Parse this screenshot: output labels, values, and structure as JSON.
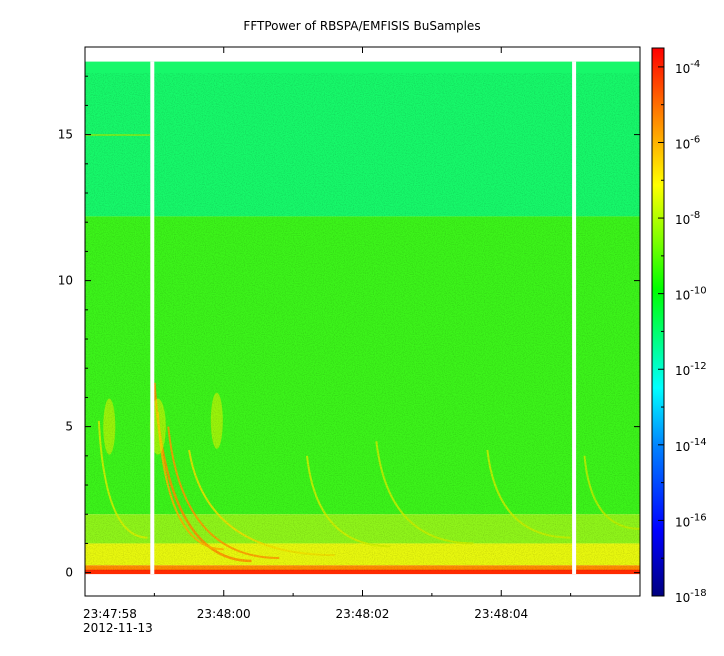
{
  "chart_data": {
    "type": "heatmap",
    "title": "FFTPower of RBSPA/EMFISIS  BuSamples",
    "xlabel": "",
    "ylabel": "",
    "ylim": [
      -0.8,
      18.0
    ],
    "xlim_seconds_after_23_47_58": [
      0,
      8
    ],
    "x_ticks": [
      {
        "value": "23:47:58",
        "secondary": "2012-11-13"
      },
      {
        "value": "23:48:00",
        "secondary": ""
      },
      {
        "value": "23:48:02",
        "secondary": ""
      },
      {
        "value": "23:48:04",
        "secondary": ""
      }
    ],
    "y_ticks": [
      {
        "value": 0,
        "label": "0"
      },
      {
        "value": 5,
        "label": "5"
      },
      {
        "value": 10,
        "label": "10"
      },
      {
        "value": 15,
        "label": "15"
      }
    ],
    "data_top_y": 17.5,
    "data_gaps_seconds": [
      0.97,
      7.05
    ],
    "colorbar": {
      "scale": "log",
      "min_exponent": -18,
      "max_exponent": -3.5,
      "tick_labels": [
        {
          "base": "10",
          "exp": "-4",
          "value": -4
        },
        {
          "base": "10",
          "exp": "-6",
          "value": -6
        },
        {
          "base": "10",
          "exp": "-8",
          "value": -8
        },
        {
          "base": "10",
          "exp": "-10",
          "value": -10
        },
        {
          "base": "10",
          "exp": "-12",
          "value": -12
        },
        {
          "base": "10",
          "exp": "-14",
          "value": -14
        },
        {
          "base": "10",
          "exp": "-16",
          "value": -16
        },
        {
          "base": "10",
          "exp": "-18",
          "value": -18
        }
      ],
      "colors": [
        "#00007f",
        "#0000ff",
        "#007fff",
        "#00ffff",
        "#00ff7f",
        "#00ff00",
        "#7fff00",
        "#ffff00",
        "#ff7f00",
        "#ff0000"
      ]
    }
  }
}
